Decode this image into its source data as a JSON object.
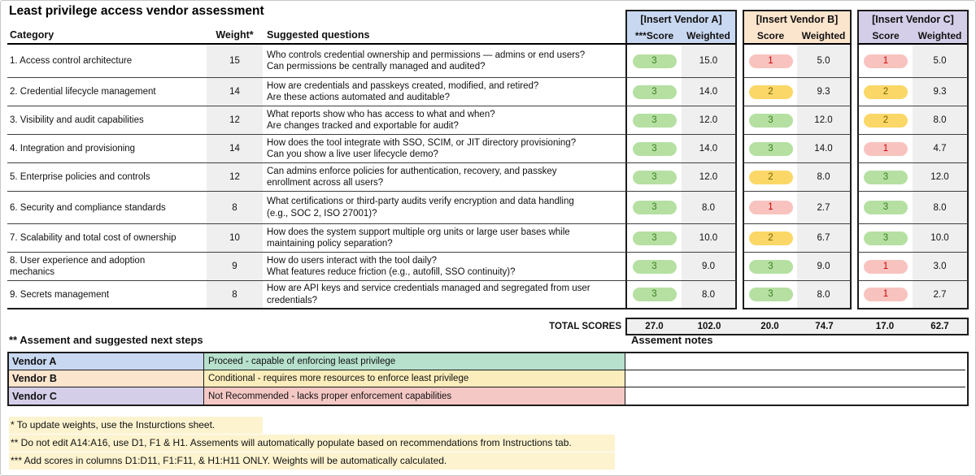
{
  "title": "Least privilege access vendor assessment",
  "columns": {
    "category": "Category",
    "weight": "Weight*",
    "questions": "Suggested questions"
  },
  "vendors": [
    {
      "name": "[Insert Vendor A]",
      "score_header": "***Score",
      "weighted_header": "Weighted",
      "color": "#c9d8f1"
    },
    {
      "name": "[Insert Vendor B]",
      "score_header": "Score",
      "weighted_header": "Weighted",
      "color": "#fce5cd"
    },
    {
      "name": "[Insert Vendor C]",
      "score_header": "Score",
      "weighted_header": "Weighted",
      "color": "#d5cee8"
    }
  ],
  "score_colors": {
    "green": {
      "bg": "#b5e0a2",
      "text": "#3c7d21"
    },
    "yellow": {
      "bg": "#fbd767",
      "text": "#756200"
    },
    "red": {
      "bg": "#f8c3bf",
      "text": "#cc0000"
    }
  },
  "rows": [
    {
      "category_lines": [
        "1. Access control architecture"
      ],
      "weight": "15",
      "question_lines": [
        "Who controls credential ownership and permissions — admins or end users?",
        "Can permissions be centrally managed and audited?"
      ],
      "scores": [
        {
          "value": "3",
          "color": "green",
          "weighted": "15.0"
        },
        {
          "value": "1",
          "color": "red",
          "weighted": "5.0"
        },
        {
          "value": "1",
          "color": "red",
          "weighted": "5.0"
        }
      ]
    },
    {
      "category_lines": [
        "2. Credential lifecycle management"
      ],
      "weight": "14",
      "question_lines": [
        "How are credentials and passkeys created, modified, and retired?",
        "Are these actions automated and auditable?"
      ],
      "scores": [
        {
          "value": "3",
          "color": "green",
          "weighted": "14.0"
        },
        {
          "value": "2",
          "color": "yellow",
          "weighted": "9.3"
        },
        {
          "value": "2",
          "color": "yellow",
          "weighted": "9.3"
        }
      ]
    },
    {
      "category_lines": [
        "3. Visibility and audit capabilities"
      ],
      "weight": "12",
      "question_lines": [
        "What reports show who has access to what and when?",
        "Are changes tracked and exportable for audit?"
      ],
      "scores": [
        {
          "value": "3",
          "color": "green",
          "weighted": "12.0"
        },
        {
          "value": "3",
          "color": "green",
          "weighted": "12.0"
        },
        {
          "value": "2",
          "color": "yellow",
          "weighted": "8.0"
        }
      ]
    },
    {
      "category_lines": [
        "4. Integration and provisioning"
      ],
      "weight": "14",
      "question_lines": [
        "How does the tool integrate with SSO, SCIM, or JIT directory provisioning?",
        "Can you show a live user lifecycle demo?"
      ],
      "scores": [
        {
          "value": "3",
          "color": "green",
          "weighted": "14.0"
        },
        {
          "value": "3",
          "color": "green",
          "weighted": "14.0"
        },
        {
          "value": "1",
          "color": "red",
          "weighted": "4.7"
        }
      ]
    },
    {
      "category_lines": [
        "5. Enterprise policies and controls"
      ],
      "weight": "12",
      "question_lines": [
        "Can admins enforce policies for authentication, recovery, and passkey",
        "enrollment across all users?"
      ],
      "scores": [
        {
          "value": "3",
          "color": "green",
          "weighted": "12.0"
        },
        {
          "value": "2",
          "color": "yellow",
          "weighted": "8.0"
        },
        {
          "value": "3",
          "color": "green",
          "weighted": "12.0"
        }
      ]
    },
    {
      "category_lines": [
        "6. Security and compliance standards"
      ],
      "weight": "8",
      "question_lines": [
        "What certifications or third-party audits verify encryption and data handling",
        "(e.g., SOC 2, ISO 27001)?"
      ],
      "scores": [
        {
          "value": "3",
          "color": "green",
          "weighted": "8.0"
        },
        {
          "value": "1",
          "color": "red",
          "weighted": "2.7"
        },
        {
          "value": "3",
          "color": "green",
          "weighted": "8.0"
        }
      ]
    },
    {
      "category_lines": [
        "7. Scalability and total cost of ownership"
      ],
      "weight": "10",
      "question_lines": [
        "How does the system support multiple org units or large user bases while",
        "maintaining policy separation?"
      ],
      "scores": [
        {
          "value": "3",
          "color": "green",
          "weighted": "10.0"
        },
        {
          "value": "2",
          "color": "yellow",
          "weighted": "6.7"
        },
        {
          "value": "3",
          "color": "green",
          "weighted": "10.0"
        }
      ]
    },
    {
      "category_lines": [
        "8. User experience and adoption",
        "mechanics"
      ],
      "weight": "9",
      "question_lines": [
        "How do users interact with the tool daily?",
        "What features reduce friction (e.g., autofill, SSO continuity)?"
      ],
      "scores": [
        {
          "value": "3",
          "color": "green",
          "weighted": "9.0"
        },
        {
          "value": "3",
          "color": "green",
          "weighted": "9.0"
        },
        {
          "value": "1",
          "color": "red",
          "weighted": "3.0"
        }
      ]
    },
    {
      "category_lines": [
        "9. Secrets management"
      ],
      "weight": "8",
      "question_lines": [
        "How are API keys and service credentials managed and segregated from user",
        "credentials?"
      ],
      "scores": [
        {
          "value": "3",
          "color": "green",
          "weighted": "8.0"
        },
        {
          "value": "3",
          "color": "green",
          "weighted": "8.0"
        },
        {
          "value": "1",
          "color": "red",
          "weighted": "2.7"
        }
      ]
    }
  ],
  "totals": {
    "label": "TOTAL SCORES",
    "values": [
      "27.0",
      "102.0",
      "20.0",
      "74.7",
      "17.0",
      "62.7"
    ]
  },
  "assessment": {
    "heading": "** Assement and suggested next steps",
    "notes_heading": "Assement notes",
    "rows": [
      {
        "vendor": "Vendor A",
        "verdict": "Proceed - capable of enforcing least privilege",
        "vendor_bg": "#c9d8f1",
        "verdict_bg": "#b7e1cd",
        "note": ""
      },
      {
        "vendor": "Vendor B",
        "verdict": "Conditional - requires more resources to enforce least privilege",
        "vendor_bg": "#fce5cd",
        "verdict_bg": "#fceebc",
        "note": ""
      },
      {
        "vendor": "Vendor C",
        "verdict": "Not Recommended - lacks proper enforcement capabilities",
        "vendor_bg": "#d5cee8",
        "verdict_bg": "#f4c8c5",
        "note": ""
      }
    ]
  },
  "footnotes": [
    "* To update weights, use the Insturctions sheet.",
    "** Do not edit A14:A16, use D1, F1 & H1. Assements will automatically populate based on recommendations from Instructions tab.",
    "*** Add scores in columns D1:D11, F1:F11, & H1:H11 ONLY. Weights will be automatically calculated."
  ]
}
